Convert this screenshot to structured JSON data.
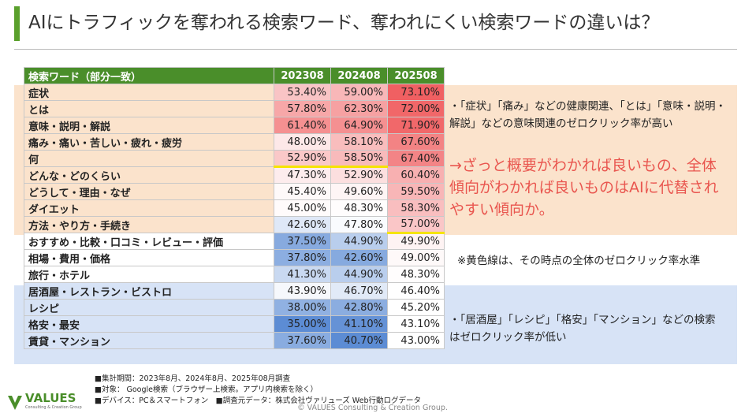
{
  "title": "AIにトラフィックを奪われる検索ワード、奪われにくい検索ワードの違いは？",
  "table": {
    "header": [
      "検索ワード（部分一致）",
      "202308",
      "202408",
      "202508"
    ],
    "rows": [
      [
        "症状",
        "53.40%",
        "59.00%",
        "73.10%"
      ],
      [
        "とは",
        "57.80%",
        "62.30%",
        "72.00%"
      ],
      [
        "意味・説明・解説",
        "61.40%",
        "64.90%",
        "71.90%"
      ],
      [
        "痛み・痛い・苦しい・疲れ・疲労",
        "48.00%",
        "58.10%",
        "67.60%"
      ],
      [
        "何",
        "52.90%",
        "58.50%",
        "67.40%"
      ],
      [
        "どんな・どのくらい",
        "47.30%",
        "52.90%",
        "60.40%"
      ],
      [
        "どうして・理由・なぜ",
        "45.40%",
        "49.60%",
        "59.50%"
      ],
      [
        "ダイエット",
        "45.00%",
        "48.30%",
        "58.30%"
      ],
      [
        "方法・やり方・手続き",
        "42.60%",
        "47.80%",
        "57.00%"
      ],
      [
        "おすすめ・比較・口コミ・レビュー・評価",
        "37.50%",
        "44.90%",
        "49.90%"
      ],
      [
        "相場・費用・価格",
        "37.80%",
        "42.60%",
        "49.00%"
      ],
      [
        "旅行・ホテル",
        "41.30%",
        "44.90%",
        "48.30%"
      ],
      [
        "居酒屋・レストラン・ビストロ",
        "43.90%",
        "46.70%",
        "46.40%"
      ],
      [
        "レシピ",
        "38.00%",
        "42.80%",
        "45.20%"
      ],
      [
        "格安・最安",
        "35.00%",
        "41.10%",
        "43.10%"
      ],
      [
        "賃貸・マンション",
        "37.60%",
        "40.70%",
        "43.00%"
      ]
    ]
  },
  "notes": {
    "high": "・「症状」「痛み」などの健康関連、「とは」「意味・説明・解説」などの意味関連のゼロクリック率が高い",
    "conclusion": "→ざっと概要がわかれば良いもの、全体傾向がわかれば良いものはAIに代替されやすい傾向か。",
    "yellow_line": "※黄色線は、その時点の全体のゼロクリック率水準",
    "low": "・「居酒屋」「レシピ」「格安」「マンション」などの検索はゼロクリック率が低い"
  },
  "footer": [
    "■集計期間：2023年8月、2024年8月、2025年08月調査",
    "■対象： Google検索（ブラウザー上検索。アプリ内検索を除く）",
    "■デバイス：PC＆スマートフォン　■調査元データ：株式会社ヴァリューズ Web行動ログデータ"
  ],
  "logo": {
    "name": "VALUES",
    "tagline": "Consulting & Creation Group"
  },
  "copyright": "© VALUES Consulting & Creation Group."
}
